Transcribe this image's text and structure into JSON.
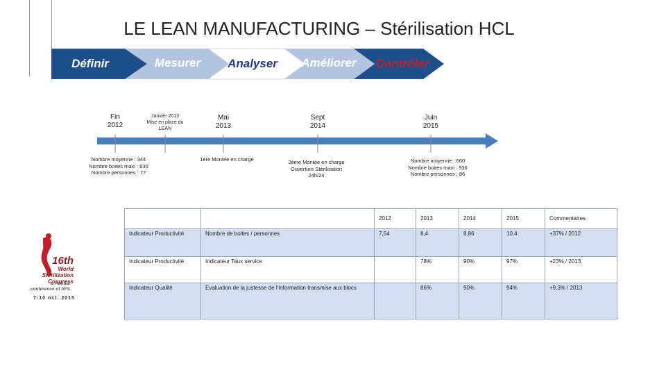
{
  "title": "LE LEAN MANUFACTURING – Stérilisation HCL",
  "phases": [
    {
      "label": "Définir",
      "color": "#1f4e8c",
      "text_color": "#ffffff"
    },
    {
      "label": "Mesurer",
      "color": "#b4c3e0",
      "text_color": "#ffffff"
    },
    {
      "label": "Analyser",
      "color": "#ffffff",
      "text_color": "#1f3d7a"
    },
    {
      "label": "Améliorer",
      "color": "#b4c3e0",
      "text_color": "#ffffff"
    },
    {
      "label": "Contrôler",
      "color": "#1f4e8c",
      "text_color": "#c0202a"
    }
  ],
  "timeline": {
    "arrow_color": "#4a7ebb",
    "dates": [
      {
        "line1": "Fin",
        "line2": "2012"
      },
      {
        "line1": "Janvier 2013",
        "line2": "Mise en place du",
        "line3": "LEAN"
      },
      {
        "line1": "Mai",
        "line2": "2013"
      },
      {
        "line1": "Sept",
        "line2": "2014"
      },
      {
        "line1": "Juin",
        "line2": "2015"
      }
    ],
    "notes": [
      {
        "line1": "Nombre moyenne : 344",
        "line2": "Nombre boites maxi : 630",
        "line3": "Nombre personnes : 77"
      },
      {
        "line1": "1ère Montée en charge"
      },
      {
        "line1": "2ème Montée en charge",
        "line2": "Ouverture Stérilisation",
        "line3": "24h/24"
      },
      {
        "line1": "Nombre moyenne : 660",
        "line2": "Nombre boites maxi : 936",
        "line3": "Nombre personnes : 86"
      }
    ]
  },
  "logo": {
    "line1": "16th",
    "line2": "World",
    "line3": "Sterilization",
    "line4": "Congress",
    "sub1": "& Annual",
    "sub2": "conference of AFS",
    "date": "7-10 oct. 2015"
  },
  "table": {
    "headers": [
      "",
      "",
      "2012",
      "2013",
      "2014",
      "2015",
      "Commentaires"
    ],
    "rows": [
      {
        "cells": [
          "Indicateur Productivité",
          "Nombre de boites / personnes",
          "7,54",
          "8,4",
          "8,86",
          "10,4",
          "+37% / 2012"
        ]
      },
      {
        "cells": [
          "Indicateur Productivité",
          "Indicateur Taux service",
          "",
          "78%",
          "90%",
          "97%",
          "+23% / 2013"
        ]
      },
      {
        "cells": [
          "Indicateur Qualité",
          "Evaluation de la justesse de l’information transmise aux blocs",
          "",
          "86%",
          "90%",
          "94%",
          "+9,3% / 2013"
        ]
      }
    ]
  }
}
